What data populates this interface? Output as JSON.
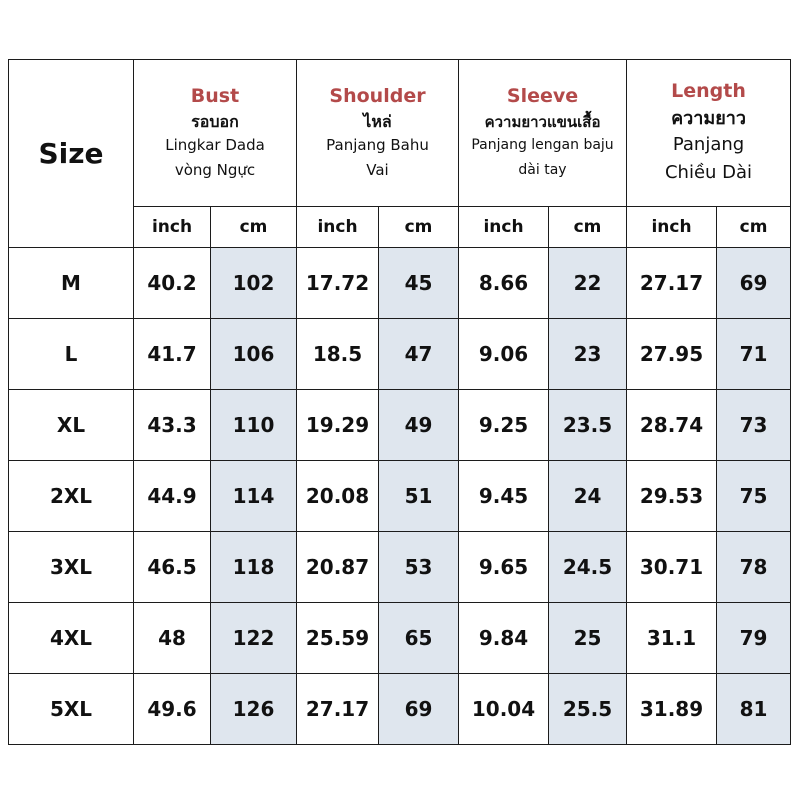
{
  "title_color": "#b34a4a",
  "cm_cell_color": "#dfe6ee",
  "header": {
    "size_label": "Size",
    "bust": {
      "en": "Bust",
      "th": "รอบอก",
      "id": "Lingkar Dada",
      "vi": "vòng Ngực"
    },
    "shoulder": {
      "en": "Shoulder",
      "th": "ไหล่",
      "id": "Panjang Bahu",
      "vi": "Vai"
    },
    "sleeve": {
      "en": "Sleeve",
      "th": "ความยาวแขนเสื้อ",
      "id": "Panjang lengan baju",
      "vi": "dài tay"
    },
    "length": {
      "en": "Length",
      "th": "ความยาว",
      "id": "Panjang",
      "vi": "Chiều Dài"
    }
  },
  "units": [
    "inch",
    "cm",
    "inch",
    "cm",
    "inch",
    "cm",
    "inch",
    "cm"
  ],
  "columns": [
    "Bust inch",
    "Bust cm",
    "Shoulder inch",
    "Shoulder cm",
    "Sleeve inch",
    "Sleeve cm",
    "Length inch",
    "Length cm"
  ],
  "rows": [
    {
      "size": "M",
      "values": [
        "40.2",
        "102",
        "17.72",
        "45",
        "8.66",
        "22",
        "27.17",
        "69"
      ]
    },
    {
      "size": "L",
      "values": [
        "41.7",
        "106",
        "18.5",
        "47",
        "9.06",
        "23",
        "27.95",
        "71"
      ]
    },
    {
      "size": "XL",
      "values": [
        "43.3",
        "110",
        "19.29",
        "49",
        "9.25",
        "23.5",
        "28.74",
        "73"
      ]
    },
    {
      "size": "2XL",
      "values": [
        "44.9",
        "114",
        "20.08",
        "51",
        "9.45",
        "24",
        "29.53",
        "75"
      ]
    },
    {
      "size": "3XL",
      "values": [
        "46.5",
        "118",
        "20.87",
        "53",
        "9.65",
        "24.5",
        "30.71",
        "78"
      ]
    },
    {
      "size": "4XL",
      "values": [
        "48",
        "122",
        "25.59",
        "65",
        "9.84",
        "25",
        "31.1",
        "79"
      ]
    },
    {
      "size": "5XL",
      "values": [
        "49.6",
        "126",
        "27.17",
        "69",
        "10.04",
        "25.5",
        "31.89",
        "81"
      ]
    }
  ]
}
